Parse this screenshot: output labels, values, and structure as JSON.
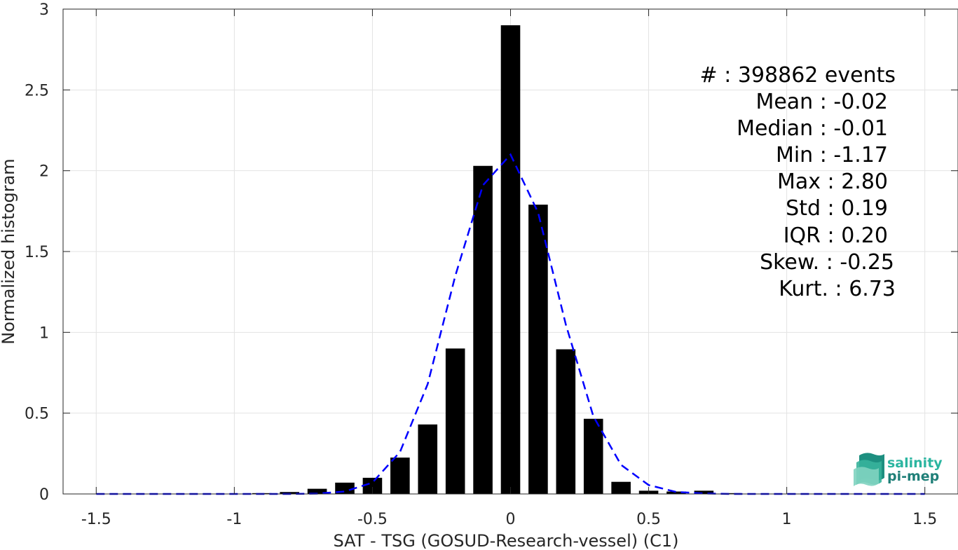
{
  "chart_data": {
    "type": "bar",
    "xlabel": "SAT - TSG (GOSUD-Research-vessel) (C1)",
    "ylabel": "Normalized histogram",
    "xlim": [
      -1.62,
      1.62
    ],
    "ylim": [
      0,
      3
    ],
    "grid": true,
    "x_ticks": [
      -1.5,
      -1,
      -0.5,
      0,
      0.5,
      1,
      1.5
    ],
    "x_tick_labels": [
      "-1.5",
      "-1",
      "-0.5",
      "0",
      "0.5",
      "1",
      "1.5"
    ],
    "y_ticks": [
      0,
      0.5,
      1,
      1.5,
      2,
      2.5,
      3
    ],
    "y_tick_labels": [
      "0",
      "0.5",
      "1",
      "1.5",
      "2",
      "2.5",
      "3"
    ],
    "bar_width": 0.07,
    "bar_color": "#000000",
    "bars": {
      "x": [
        -1.5,
        -1.4,
        -1.3,
        -1.2,
        -1.1,
        -1.0,
        -0.9,
        -0.8,
        -0.7,
        -0.6,
        -0.5,
        -0.4,
        -0.3,
        -0.2,
        -0.1,
        0.0,
        0.1,
        0.2,
        0.3,
        0.4,
        0.5,
        0.6,
        0.7,
        0.8,
        0.9,
        1.0,
        1.1,
        1.2,
        1.3,
        1.4,
        1.5
      ],
      "values": [
        0,
        0,
        0,
        0,
        0,
        0,
        0.005,
        0.012,
        0.032,
        0.07,
        0.1,
        0.225,
        0.43,
        0.9,
        2.03,
        2.9,
        1.79,
        0.895,
        0.465,
        0.075,
        0.02,
        0.015,
        0.02,
        0.005,
        0,
        0,
        0,
        0,
        0,
        0,
        0
      ]
    },
    "fit_curve": {
      "name": "",
      "color": "#0000ff",
      "style": "dashed",
      "x": [
        -1.5,
        -1.4,
        -1.3,
        -1.2,
        -1.1,
        -1.0,
        -0.9,
        -0.8,
        -0.7,
        -0.6,
        -0.5,
        -0.4,
        -0.3,
        -0.2,
        -0.1,
        0.0,
        0.1,
        0.2,
        0.3,
        0.4,
        0.5,
        0.6,
        0.7,
        0.8,
        0.9,
        1.0,
        1.1,
        1.2,
        1.3,
        1.4,
        1.5
      ],
      "values": [
        0,
        0,
        0,
        0,
        0,
        0,
        0,
        0,
        0.002,
        0.015,
        0.07,
        0.26,
        0.68,
        1.35,
        1.91,
        2.1,
        1.74,
        1.05,
        0.48,
        0.18,
        0.055,
        0.012,
        0.003,
        0,
        0,
        0,
        0,
        0,
        0,
        0,
        0
      ]
    }
  },
  "stats": [
    {
      "label": "#  : 398862 events"
    },
    {
      "label": "Mean : -0.02"
    },
    {
      "label": "Median : -0.01"
    },
    {
      "label": "Min : -1.17"
    },
    {
      "label": "Max : 2.80"
    },
    {
      "label": "Std : 0.19"
    },
    {
      "label": "IQR : 0.20"
    },
    {
      "label": "Skew. : -0.25"
    },
    {
      "label": "Kurt. : 6.73"
    }
  ],
  "logo": {
    "line1": "salinity",
    "line2": "pi-mep",
    "color1": "#2bb5a0",
    "color2": "#1f7f78"
  }
}
